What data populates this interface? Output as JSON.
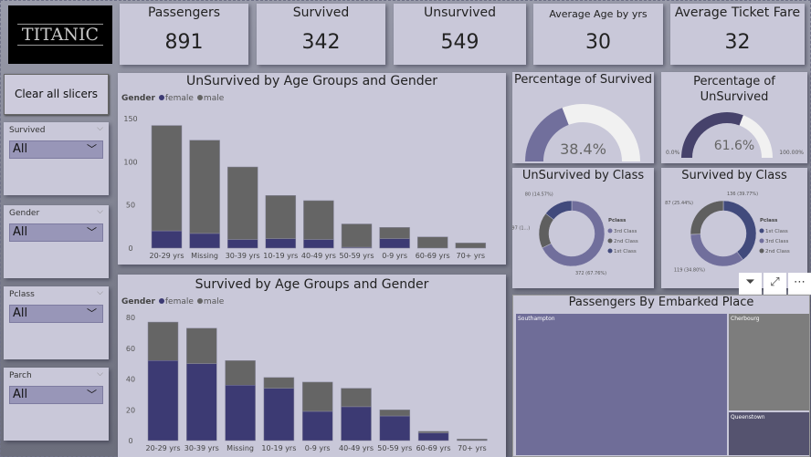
{
  "logo": {
    "text": "TITANIC"
  },
  "kpis": [
    {
      "label": "Passengers",
      "value": "891"
    },
    {
      "label": "Survived",
      "value": "342"
    },
    {
      "label": "Unsurvived",
      "value": "549"
    },
    {
      "label": "Average Age by yrs",
      "value": "30"
    },
    {
      "label": "Average Ticket Fare",
      "value": "32"
    }
  ],
  "clear_button": "Clear all slicers",
  "slicers": [
    {
      "label": "Survived",
      "value": "All"
    },
    {
      "label": "Gender",
      "value": "All"
    },
    {
      "label": "Pclass",
      "value": "All"
    },
    {
      "label": "Parch",
      "value": "All"
    }
  ],
  "colors": {
    "female": "#3c3a73",
    "male": "#656565",
    "third": "#716f9c",
    "second": "#5f5f5f",
    "first": "#414a7c",
    "gauge_survived": "#716f9c",
    "gauge_unsurvived": "#46426b",
    "gauge_bg": "#f1f1f1"
  },
  "chart_data": [
    {
      "type": "bar",
      "stacked": true,
      "title": "UnSurvived by Age Groups and Gender",
      "legend_title": "Gender",
      "legend_position": "top-left",
      "categories": [
        "20-29 yrs",
        "Missing",
        "30-39 yrs",
        "10-19 yrs",
        "40-49 yrs",
        "50-59 yrs",
        "0-9 yrs",
        "60-69 yrs",
        "70+ yrs"
      ],
      "series": [
        {
          "name": "female",
          "values": [
            20,
            17,
            10,
            11,
            10,
            1,
            11,
            0,
            0
          ]
        },
        {
          "name": "male",
          "values": [
            122,
            108,
            84,
            50,
            45,
            27,
            13,
            13,
            6
          ]
        }
      ],
      "ylim": [
        0,
        150
      ],
      "yticks": [
        "0",
        "50",
        "100",
        "150"
      ]
    },
    {
      "type": "bar",
      "stacked": true,
      "title": "Survived by Age Groups and Gender",
      "legend_title": "Gender",
      "legend_position": "top-left",
      "categories": [
        "20-29 yrs",
        "30-39 yrs",
        "Missing",
        "10-19 yrs",
        "0-9 yrs",
        "40-49 yrs",
        "50-59 yrs",
        "60-69 yrs",
        "70+ yrs"
      ],
      "series": [
        {
          "name": "female",
          "values": [
            52,
            50,
            36,
            34,
            19,
            22,
            16,
            5,
            0
          ]
        },
        {
          "name": "male",
          "values": [
            25,
            23,
            16,
            7,
            19,
            12,
            4,
            1,
            1
          ]
        }
      ],
      "ylim": [
        0,
        80
      ],
      "yticks": [
        "0",
        "20",
        "40",
        "60",
        "80"
      ]
    }
  ],
  "gauges": [
    {
      "title": "Percentage of Survived",
      "value": 38.4,
      "label": "38.4%"
    },
    {
      "title": "Percentage of UnSurvived",
      "value": 61.6,
      "label": "61.6%",
      "min_label": "0.0%",
      "max_label": "100.00%"
    }
  ],
  "donuts": [
    {
      "title": "UnSurvived by Class",
      "legend_title": "Pclass",
      "slices": [
        {
          "name": "3rd Class",
          "value": 372,
          "label": "372 (67.76%)"
        },
        {
          "name": "2nd Class",
          "value": 97,
          "label": "97 (1...)"
        },
        {
          "name": "1st Class",
          "value": 80,
          "label": "80 (14.57%)"
        }
      ]
    },
    {
      "title": "Survived by Class",
      "legend_title": "Pclass",
      "slices": [
        {
          "name": "1st Class",
          "value": 136,
          "label": "136 (39.77%)"
        },
        {
          "name": "3rd Class",
          "value": 119,
          "label": "119 (34.80%)"
        },
        {
          "name": "2nd Class",
          "value": 87,
          "label": "87 (25.44%)"
        }
      ]
    }
  ],
  "treemap": {
    "title": "Passengers By Embarked Place",
    "items": [
      {
        "name": "Southampton",
        "value": 644
      },
      {
        "name": "Cherbourg",
        "value": 168
      },
      {
        "name": "Queenstown",
        "value": 77
      }
    ]
  },
  "visual_icons": [
    "filter-icon",
    "focus-mode-icon",
    "more-options-icon"
  ]
}
